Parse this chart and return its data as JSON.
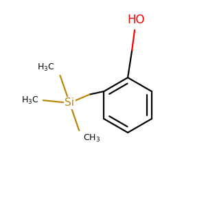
{
  "bg_color": "#ffffff",
  "bond_color": "#000000",
  "si_bond_color": "#b8860b",
  "ho_color": "#ff0000",
  "si_label_color": "#b8860b",
  "si_fontsize": 11,
  "methyl_fontsize": 9,
  "ho_fontsize": 12,
  "figsize": [
    3.0,
    3.0
  ],
  "dpi": 100,
  "lw": 1.6,
  "lw_si": 1.6,
  "h3c_top_label": "H$_3$C",
  "h3c_mid_label": "H$_3$C",
  "ch3_bot_label": "CH$_3$"
}
